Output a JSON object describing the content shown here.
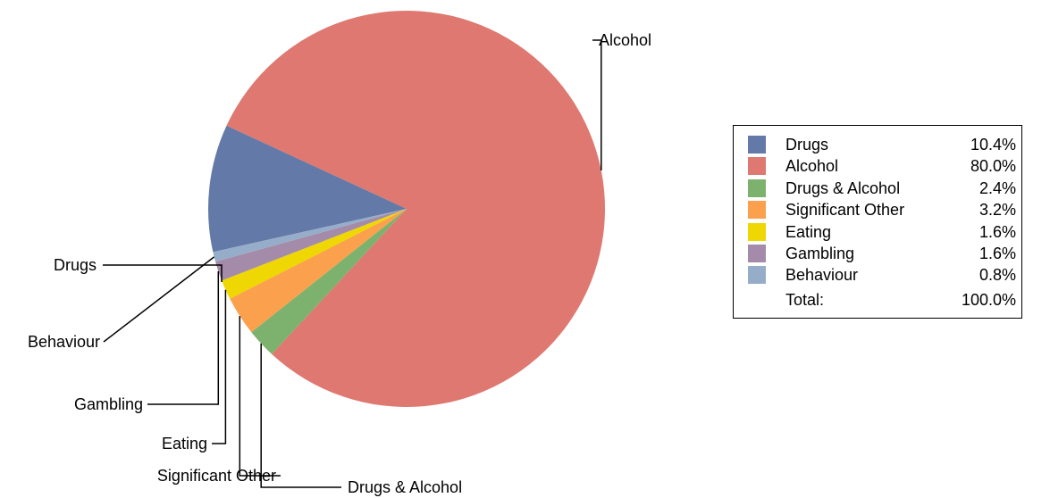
{
  "chart_data": {
    "type": "pie",
    "series": [
      {
        "values": [
          {
            "label": "Drugs",
            "value": 10.4,
            "display": "10.4%",
            "color": "#6379a7"
          },
          {
            "label": "Alcohol",
            "value": 80.0,
            "display": "80.0%",
            "color": "#de7870"
          },
          {
            "label": "Drugs & Alcohol",
            "value": 2.4,
            "display": "2.4%",
            "color": "#7db26e"
          },
          {
            "label": "Significant Other",
            "value": 3.2,
            "display": "3.2%",
            "color": "#fba04d"
          },
          {
            "label": "Eating",
            "value": 1.6,
            "display": "1.6%",
            "color": "#eed702"
          },
          {
            "label": "Gambling",
            "value": 1.6,
            "display": "1.6%",
            "color": "#a48ba9"
          },
          {
            "label": "Behaviour",
            "value": 0.8,
            "display": "0.8%",
            "color": "#96adca"
          }
        ]
      }
    ],
    "legend": {
      "placement": "right",
      "total_label": "Total:",
      "total_value": "100.0%"
    }
  }
}
